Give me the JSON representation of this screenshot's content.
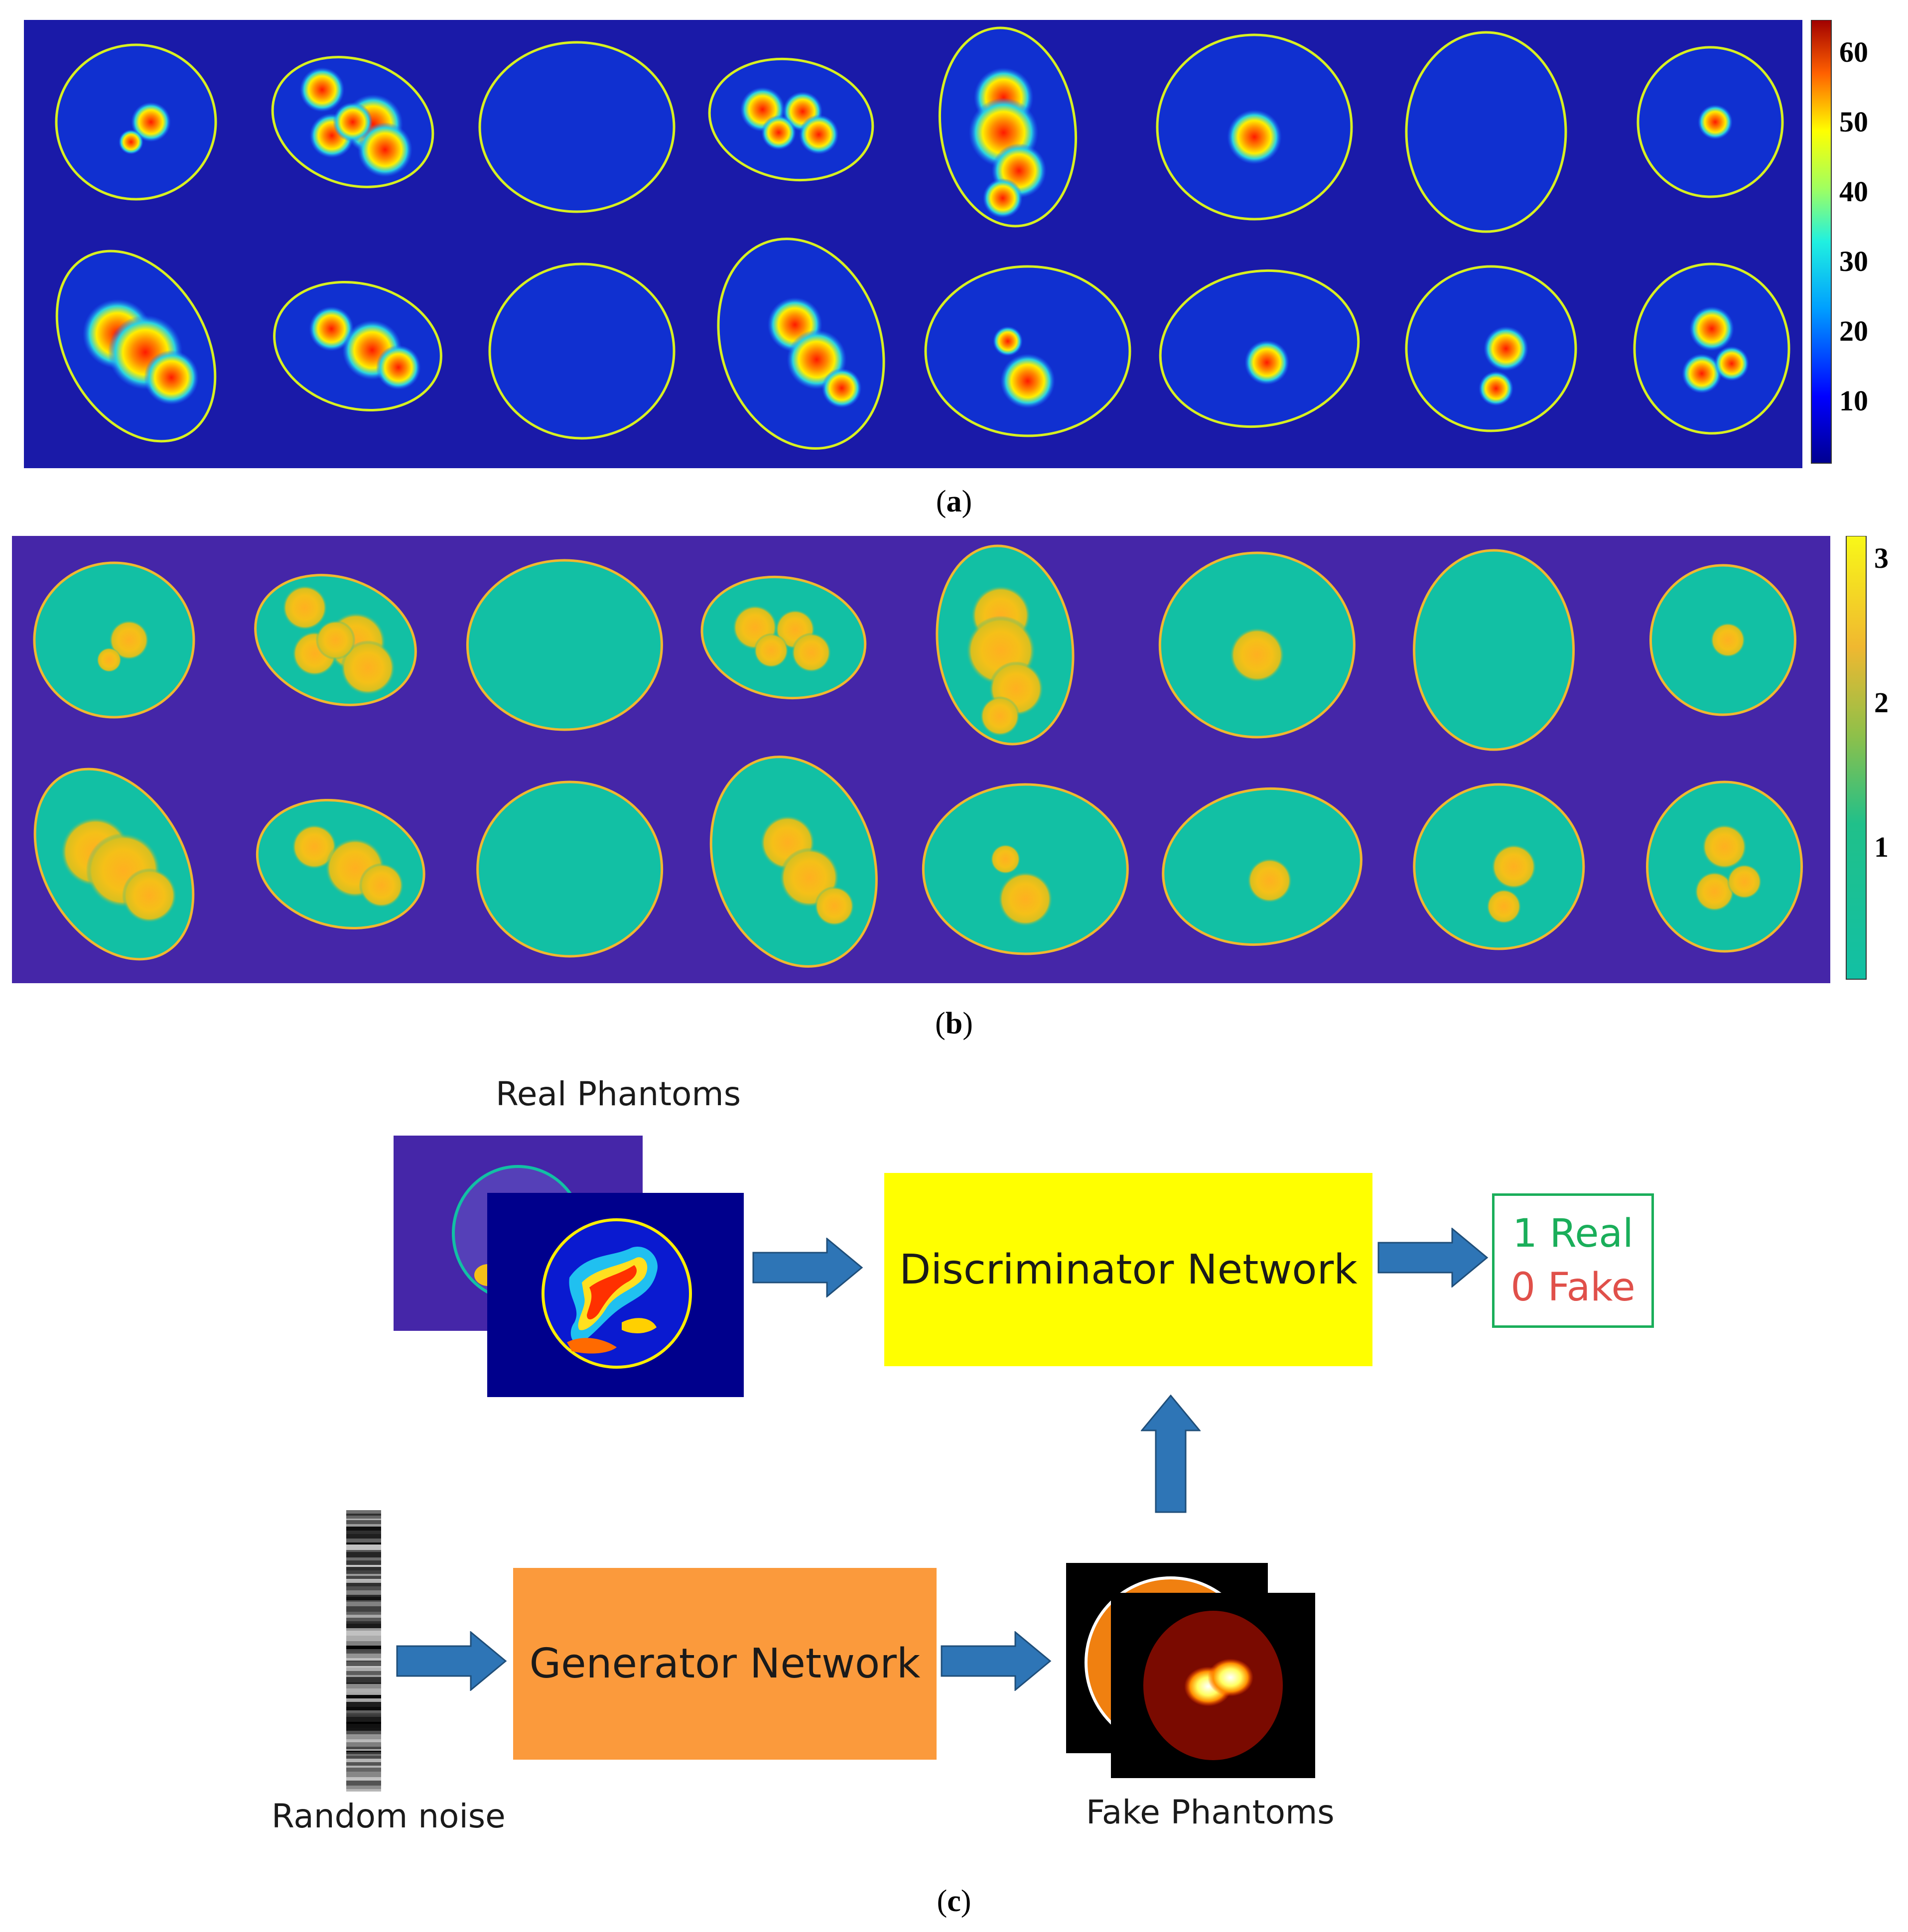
{
  "panel_a": {
    "caption": "a",
    "colorbar_ticks": [
      "60",
      "50",
      "40",
      "30",
      "20",
      "10"
    ]
  },
  "panel_b": {
    "caption": "b",
    "colorbar_ticks": [
      "3",
      "2",
      "1"
    ]
  },
  "panel_c": {
    "caption": "c",
    "real_phantoms_label": "Real Phantoms",
    "discriminator_label": "Discriminator Network",
    "output_real": "1 Real",
    "output_fake": "0 Fake",
    "generator_label": "Generator Network",
    "random_noise_label": "Random noise",
    "fake_phantoms_label": "Fake Phantoms"
  },
  "colors": {
    "panel_a_bg": "#1a1aa8",
    "panel_b_bg": "#4526a8",
    "panel_b_tissue": "#12c0a4",
    "discriminator_fill": "#ffff00",
    "generator_fill": "#fb9a3c",
    "arrow_fill": "#2e75b6",
    "real_text": "#1aae5a",
    "fake_text": "#e0504a",
    "output_border": "#1aae5a"
  }
}
